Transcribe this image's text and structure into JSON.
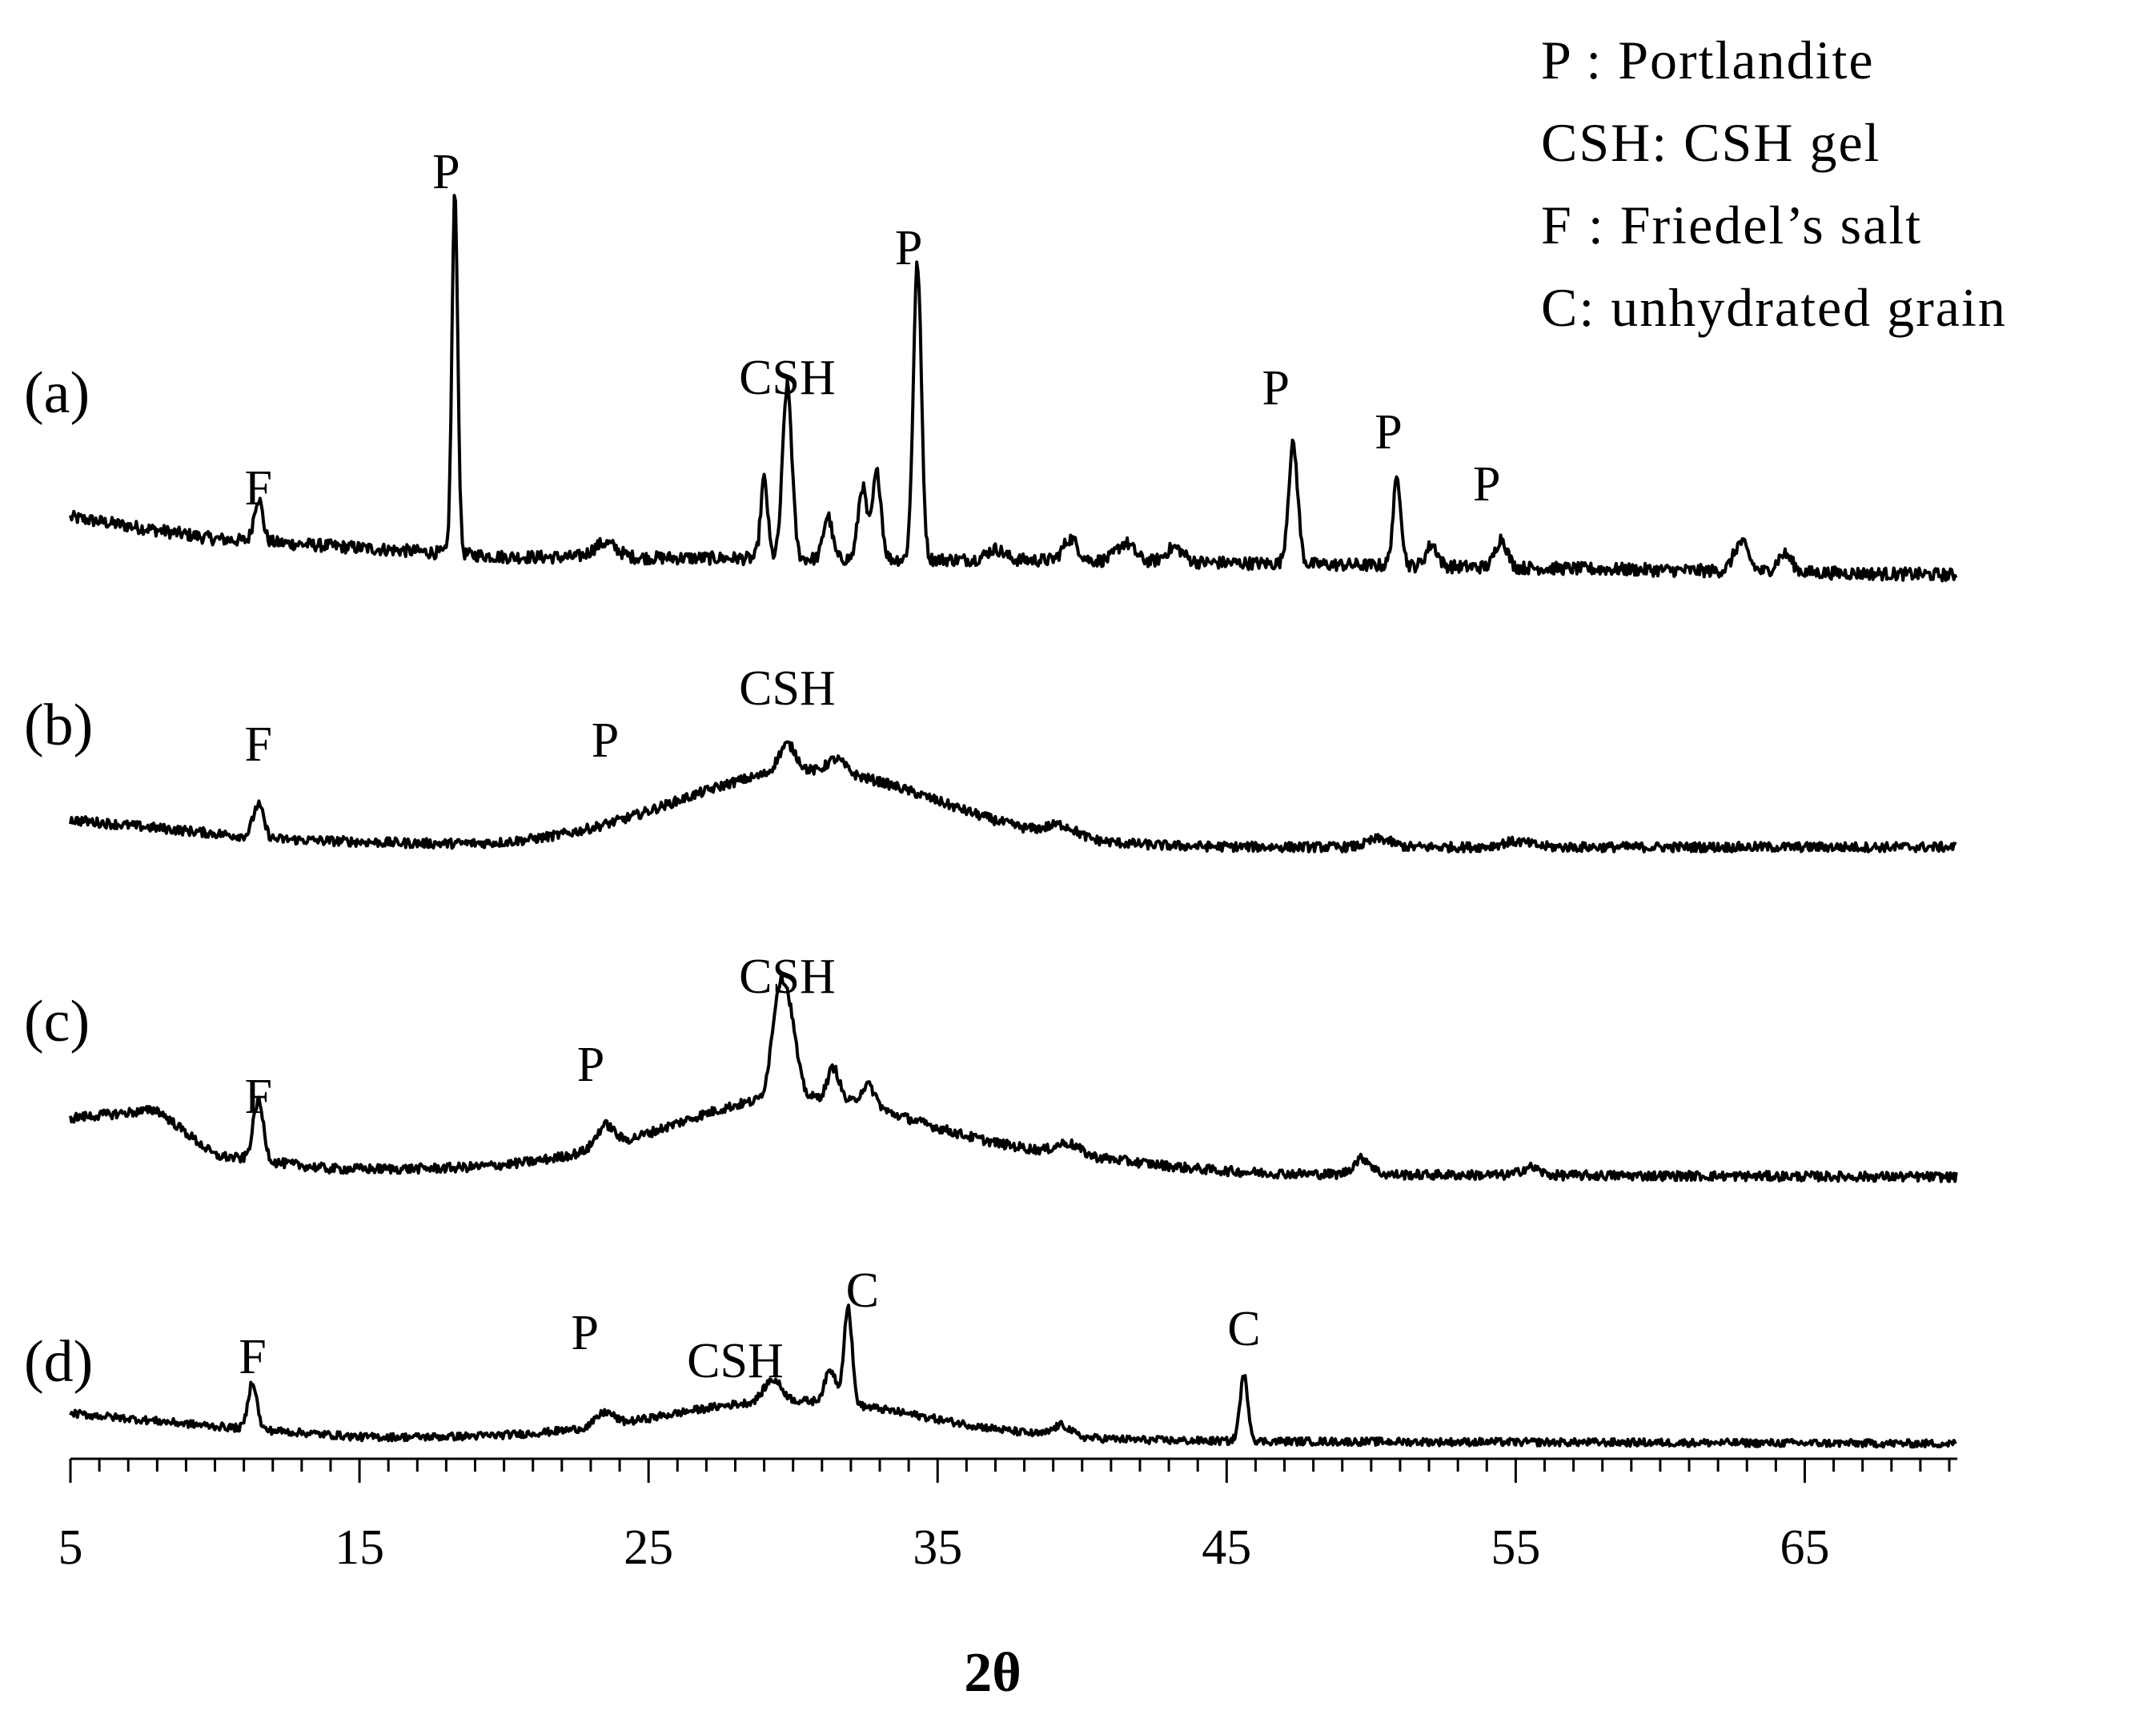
{
  "chart_data": {
    "type": "line",
    "xlabel": "2θ",
    "ylabel": "",
    "xlim": [
      5,
      70
    ],
    "x_ticks": [
      5,
      15,
      25,
      35,
      45,
      55,
      65
    ],
    "grid": false,
    "legend_position": "top-right",
    "legend": [
      "P  :  Portlandite",
      "CSH:  CSH gel",
      "F  :  Friedel’s salt",
      "C:  unhydrated grain"
    ],
    "series": [
      {
        "name": "(a)",
        "baseline": [
          [
            5,
            0.16
          ],
          [
            10,
            0.1
          ],
          [
            20,
            0.05
          ],
          [
            40,
            0.04
          ],
          [
            55,
            0.02
          ],
          [
            70,
            0.0
          ]
        ],
        "peaks": [
          [
            11.5,
            0.12,
            0.15
          ],
          [
            18.3,
            1.0,
            0.1
          ],
          [
            23.5,
            0.04,
            0.4
          ],
          [
            29.0,
            0.22,
            0.12
          ],
          [
            29.8,
            0.48,
            0.16
          ],
          [
            31.2,
            0.12,
            0.15
          ],
          [
            32.4,
            0.2,
            0.15
          ],
          [
            32.9,
            0.24,
            0.15
          ],
          [
            34.3,
            0.82,
            0.14
          ],
          [
            37.0,
            0.03,
            0.3
          ],
          [
            39.6,
            0.06,
            0.25
          ],
          [
            41.5,
            0.05,
            0.3
          ],
          [
            43.2,
            0.04,
            0.3
          ],
          [
            47.3,
            0.33,
            0.16
          ],
          [
            50.9,
            0.24,
            0.14
          ],
          [
            52.1,
            0.06,
            0.2
          ],
          [
            54.5,
            0.08,
            0.2
          ],
          [
            62.8,
            0.08,
            0.25
          ],
          [
            64.3,
            0.05,
            0.25
          ]
        ],
        "labels": [
          {
            "text": "F",
            "x": 11.5
          },
          {
            "text": "P",
            "x": 18.0
          },
          {
            "text": "CSH",
            "x": 29.8
          },
          {
            "text": "P",
            "x": 34.0
          },
          {
            "text": "P",
            "x": 46.7
          },
          {
            "text": "P",
            "x": 50.6
          },
          {
            "text": "P",
            "x": 54.0
          }
        ]
      },
      {
        "name": "(b)",
        "baseline": [
          [
            5,
            0.1
          ],
          [
            12,
            0.03
          ],
          [
            20,
            0.0
          ],
          [
            70,
            0.0
          ]
        ],
        "humps": [
          [
            30.5,
            0.28,
            4.5
          ]
        ],
        "peaks": [
          [
            11.5,
            0.12,
            0.18
          ],
          [
            29.8,
            0.1,
            0.3
          ],
          [
            31.5,
            0.05,
            0.3
          ],
          [
            39.3,
            0.04,
            0.5
          ],
          [
            50.3,
            0.03,
            0.4
          ],
          [
            55.0,
            0.02,
            0.5
          ]
        ],
        "labels": [
          {
            "text": "F",
            "x": 11.5
          },
          {
            "text": "P",
            "x": 23.5
          },
          {
            "text": "CSH",
            "x": 29.8
          }
        ]
      },
      {
        "name": "(c)",
        "baseline": [
          [
            5,
            0.22
          ],
          [
            8,
            0.25
          ],
          [
            10,
            0.08
          ],
          [
            14,
            0.03
          ],
          [
            25,
            0.02
          ],
          [
            70,
            0.0
          ]
        ],
        "humps": [
          [
            30.2,
            0.28,
            4.5
          ],
          [
            40.0,
            0.04,
            3
          ]
        ],
        "peaks": [
          [
            11.5,
            0.22,
            0.18
          ],
          [
            23.5,
            0.08,
            0.3
          ],
          [
            29.5,
            0.35,
            0.25
          ],
          [
            29.9,
            0.25,
            0.25
          ],
          [
            31.4,
            0.12,
            0.2
          ],
          [
            32.6,
            0.08,
            0.25
          ],
          [
            39.5,
            0.04,
            0.4
          ],
          [
            49.7,
            0.06,
            0.3
          ],
          [
            55.5,
            0.03,
            0.3
          ]
        ],
        "labels": [
          {
            "text": "F",
            "x": 11.5
          },
          {
            "text": "P",
            "x": 23.0
          },
          {
            "text": "CSH",
            "x": 29.8
          }
        ]
      },
      {
        "name": "(d)",
        "baseline": [
          [
            5,
            0.14
          ],
          [
            10,
            0.08
          ],
          [
            15,
            0.03
          ],
          [
            25,
            0.02
          ],
          [
            70,
            0.0
          ]
        ],
        "humps": [
          [
            30.0,
            0.18,
            4.5
          ]
        ],
        "peaks": [
          [
            11.3,
            0.22,
            0.15
          ],
          [
            23.5,
            0.06,
            0.3
          ],
          [
            29.3,
            0.1,
            0.3
          ],
          [
            31.3,
            0.15,
            0.2
          ],
          [
            31.9,
            0.45,
            0.14
          ],
          [
            39.3,
            0.05,
            0.3
          ],
          [
            45.6,
            0.3,
            0.14
          ]
        ],
        "labels": [
          {
            "text": "F",
            "x": 11.3
          },
          {
            "text": "P",
            "x": 22.8
          },
          {
            "text": "CSH",
            "x": 28.0
          },
          {
            "text": "C",
            "x": 32.4
          },
          {
            "text": "C",
            "x": 45.6
          }
        ]
      }
    ]
  }
}
